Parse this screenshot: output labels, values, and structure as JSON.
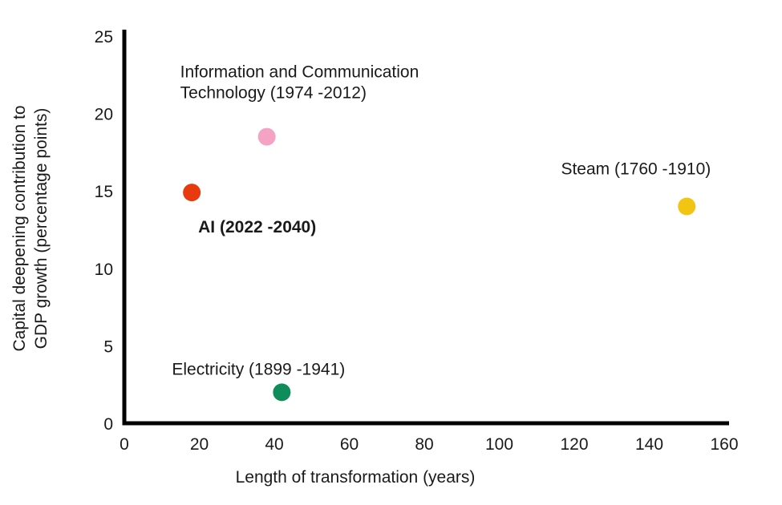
{
  "chart_data": {
    "type": "scatter",
    "title": "",
    "xlabel": "Length of transformation (years)",
    "ylabel": "Capital deepening contribution to GDP growth (percentage points)",
    "ylabel_lines": [
      "Capital deepening contribution to",
      "GDP growth (percentage points)"
    ],
    "xlim": [
      0,
      160
    ],
    "ylim": [
      0,
      25
    ],
    "x_ticks": [
      0,
      20,
      40,
      60,
      80,
      100,
      120,
      140,
      160
    ],
    "y_ticks": [
      0,
      5,
      10,
      15,
      20,
      25
    ],
    "grid": false,
    "legend": false,
    "background": "#ffffff",
    "axis_color": "#000000",
    "text_color": "#1a1a1a",
    "marker_radius": 11,
    "points": [
      {
        "id": "ict",
        "name": "Information and Communication Technology",
        "period": "1974 -2012",
        "x": 38,
        "y": 18.5,
        "color": "#f4a3c4",
        "label_lines": [
          "Information and Communication",
          "Technology (1974 -2012)"
        ],
        "bold": false,
        "anchor": "start",
        "offset": [
          -108,
          -74
        ],
        "line_height": 26
      },
      {
        "id": "ai",
        "name": "AI",
        "period": "2022 -2040",
        "x": 18,
        "y": 14.9,
        "color": "#e83a0f",
        "label_lines": [
          "AI (2022 -2040)"
        ],
        "bold": true,
        "anchor": "start",
        "offset": [
          8,
          50
        ],
        "line_height": 26
      },
      {
        "id": "steam",
        "name": "Steam",
        "period": "1760 -1910",
        "x": 150,
        "y": 14,
        "color": "#f2c513",
        "label_lines": [
          "Steam (1760 -1910)"
        ],
        "bold": false,
        "anchor": "end",
        "offset": [
          30,
          -40
        ],
        "line_height": 26
      },
      {
        "id": "electricity",
        "name": "Electricity",
        "period": "1899 -1941",
        "x": 42,
        "y": 2,
        "color": "#0e8c59",
        "label_lines": [
          "Electricity (1899 -1941)"
        ],
        "bold": false,
        "anchor": "start",
        "offset": [
          -137,
          -22
        ],
        "line_height": 26
      }
    ]
  }
}
